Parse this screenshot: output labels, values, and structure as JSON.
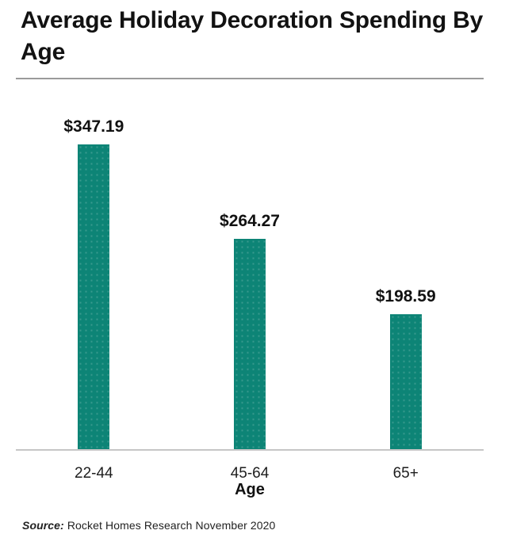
{
  "chart_data": {
    "type": "bar",
    "title": "Average Holiday Decoration Spending By Age",
    "categories": [
      "22-44",
      "45-64",
      "65+"
    ],
    "values": [
      347.19,
      264.27,
      198.59
    ],
    "value_labels": [
      "$347.19",
      "$264.27",
      "$198.59"
    ],
    "xlabel": "Age",
    "ylabel": "",
    "ylim": [
      80,
      390
    ],
    "grid": false,
    "legend": false,
    "bar_color": "#0d8476",
    "label_color": "#111111",
    "axis_line_color": "#c6c6c6",
    "divider_color": "#9b9b9b"
  },
  "source": {
    "prefix": "Source:",
    "text": " Rocket Homes Research November 2020"
  }
}
